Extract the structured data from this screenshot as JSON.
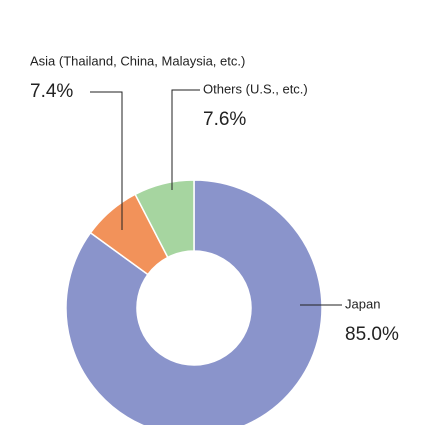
{
  "chart_data": {
    "type": "pie",
    "categories": [
      "Japan",
      "Asia (Thailand, China, Malaysia, etc.)",
      "Others (U.S., etc.)"
    ],
    "values": [
      85.0,
      7.4,
      7.6
    ],
    "value_labels": [
      "85.0%",
      "7.4%",
      "7.6%"
    ],
    "colors": [
      "#8a94cb",
      "#f2925a",
      "#a6d5a0"
    ],
    "donut": true
  }
}
